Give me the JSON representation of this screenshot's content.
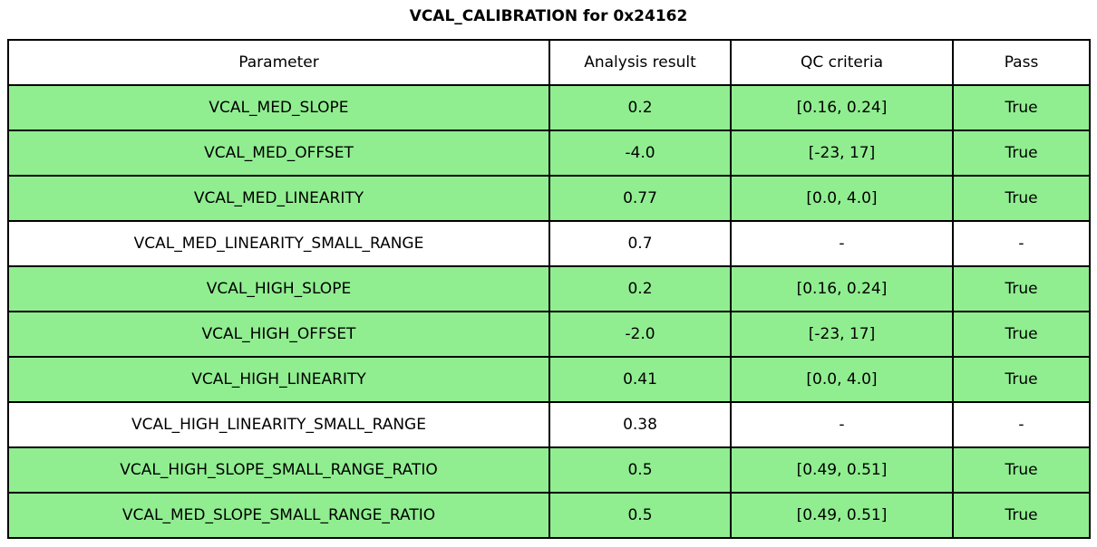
{
  "title": "VCAL_CALIBRATION for 0x24162",
  "colors": {
    "pass_green": "#90ee90",
    "border": "#000000",
    "background": "#ffffff"
  },
  "table": {
    "columns": {
      "parameter": "Parameter",
      "result": "Analysis result",
      "criteria": "QC criteria",
      "pass": "Pass"
    },
    "rows": [
      {
        "parameter": "VCAL_MED_SLOPE",
        "result": "0.2",
        "criteria": "[0.16, 0.24]",
        "pass": "True",
        "highlight": true
      },
      {
        "parameter": "VCAL_MED_OFFSET",
        "result": "-4.0",
        "criteria": "[-23, 17]",
        "pass": "True",
        "highlight": true
      },
      {
        "parameter": "VCAL_MED_LINEARITY",
        "result": "0.77",
        "criteria": "[0.0, 4.0]",
        "pass": "True",
        "highlight": true
      },
      {
        "parameter": "VCAL_MED_LINEARITY_SMALL_RANGE",
        "result": "0.7",
        "criteria": "-",
        "pass": "-",
        "highlight": false
      },
      {
        "parameter": "VCAL_HIGH_SLOPE",
        "result": "0.2",
        "criteria": "[0.16, 0.24]",
        "pass": "True",
        "highlight": true
      },
      {
        "parameter": "VCAL_HIGH_OFFSET",
        "result": "-2.0",
        "criteria": "[-23, 17]",
        "pass": "True",
        "highlight": true
      },
      {
        "parameter": "VCAL_HIGH_LINEARITY",
        "result": "0.41",
        "criteria": "[0.0, 4.0]",
        "pass": "True",
        "highlight": true
      },
      {
        "parameter": "VCAL_HIGH_LINEARITY_SMALL_RANGE",
        "result": "0.38",
        "criteria": "-",
        "pass": "-",
        "highlight": false
      },
      {
        "parameter": "VCAL_HIGH_SLOPE_SMALL_RANGE_RATIO",
        "result": "0.5",
        "criteria": "[0.49, 0.51]",
        "pass": "True",
        "highlight": true
      },
      {
        "parameter": "VCAL_MED_SLOPE_SMALL_RANGE_RATIO",
        "result": "0.5",
        "criteria": "[0.49, 0.51]",
        "pass": "True",
        "highlight": true
      }
    ]
  }
}
